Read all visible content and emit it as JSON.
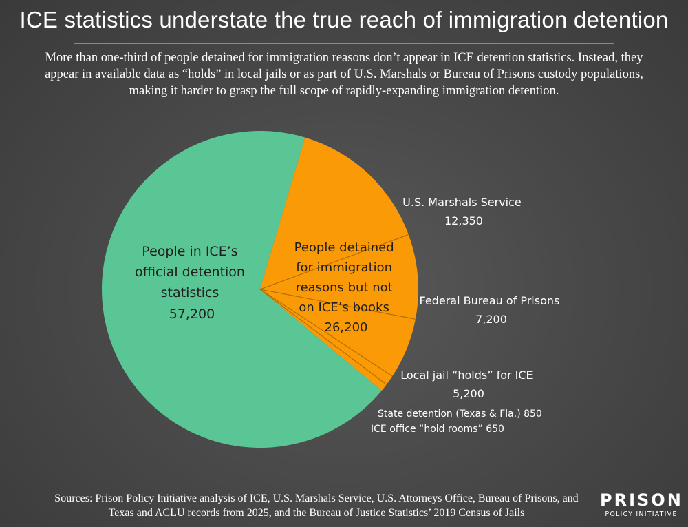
{
  "title": "ICE statistics understate the true reach of immigration detention",
  "subtitle": "More than one-third of people detained for immigration reasons don’t appear in ICE detention statistics. Instead, they appear in available data as “holds” in local jails or as part of U.S. Marshals or Bureau of Prisons custody populations, making it harder to grasp the full scope of rapidly-expanding immigration detention.",
  "sources": "Sources: Prison Policy Initiative analysis of ICE, U.S. Marshals Service, U.S. Attorneys Office, Bureau of Prisons, and Texas and ACLU records from 2025, and the Bureau of Justice Statistics’ 2019 Census of Jails",
  "logo": {
    "line1": "PRISON",
    "line2": "POLICY INITIATIVE"
  },
  "colors": {
    "ice": "#5ac595",
    "other": "#fa9a07",
    "background": "#4a4a4a"
  },
  "chart_data": {
    "type": "pie",
    "slices": [
      {
        "name": "People in ICE’s official detention statistics",
        "value": 57200,
        "color": "#5ac595"
      },
      {
        "name": "U.S. Marshals Service",
        "value": 12350,
        "color": "#fa9a07"
      },
      {
        "name": "Federal Bureau of Prisons",
        "value": 7200,
        "color": "#fa9a07"
      },
      {
        "name": "Local jail “holds” for ICE",
        "value": 5200,
        "color": "#fa9a07"
      },
      {
        "name": "State detention (Texas & Fla.)",
        "value": 850,
        "color": "#fa9a07"
      },
      {
        "name": "ICE office “hold rooms”",
        "value": 650,
        "color": "#fa9a07"
      }
    ],
    "group_label": {
      "lines": [
        "People detained",
        "for immigration",
        "reasons but not",
        "on ICE’s books"
      ],
      "value": "26,200"
    },
    "ice_label": {
      "lines": [
        "People in ICE’s",
        "official detention",
        "statistics"
      ],
      "value": "57,200"
    },
    "labels": {
      "marshals": {
        "name": "U.S. Marshals Service",
        "value": "12,350"
      },
      "bop": {
        "name": "Federal Bureau of Prisons",
        "value": "7,200"
      },
      "jail": {
        "name": "Local jail “holds” for ICE",
        "value": "5,200"
      },
      "state": "State detention (Texas & Fla.) 850",
      "holdrooms": "ICE office “hold rooms” 650"
    }
  }
}
